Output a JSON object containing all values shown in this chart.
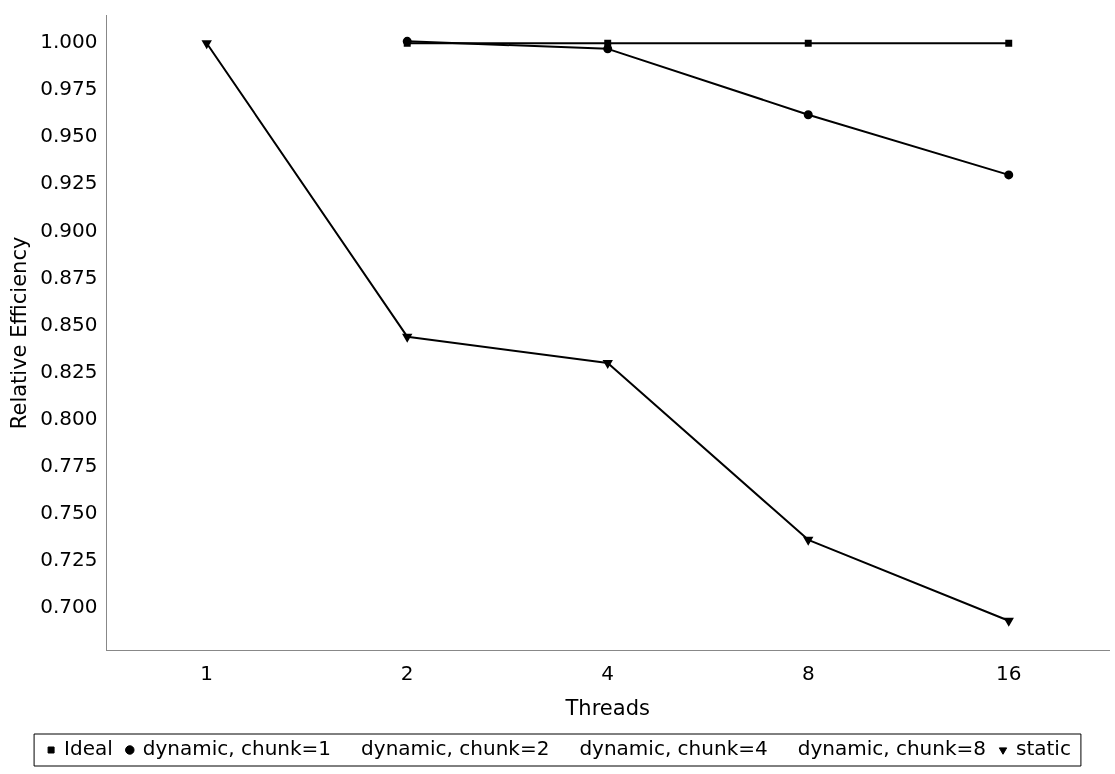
{
  "chart_data": {
    "type": "line",
    "xlabel": "Threads",
    "ylabel": "Relative Efficiency",
    "categories": [
      "1",
      "2",
      "4",
      "8",
      "16"
    ],
    "ylim": [
      0.677,
      1.015
    ],
    "yticks": [
      {
        "value": 0.7,
        "label": "0.700"
      },
      {
        "value": 0.725,
        "label": "0.725"
      },
      {
        "value": 0.75,
        "label": "0.750"
      },
      {
        "value": 0.775,
        "label": "0.775"
      },
      {
        "value": 0.8,
        "label": "0.800"
      },
      {
        "value": 0.825,
        "label": "0.825"
      },
      {
        "value": 0.85,
        "label": "0.850"
      },
      {
        "value": 0.875,
        "label": "0.875"
      },
      {
        "value": 0.9,
        "label": "0.900"
      },
      {
        "value": 0.925,
        "label": "0.925"
      },
      {
        "value": 0.95,
        "label": "0.950"
      },
      {
        "value": 0.975,
        "label": "0.975"
      },
      {
        "value": 1.0,
        "label": "1.000"
      }
    ],
    "grid": false,
    "legend": "bottom",
    "series": [
      {
        "name": "Ideal",
        "color": "#000000",
        "marker": "square",
        "values": [
          null,
          1.0,
          1.0,
          1.0,
          1.0
        ]
      },
      {
        "name": "dynamic, chunk=1",
        "color": "#000000",
        "marker": "circle",
        "values": [
          null,
          1.001,
          0.997,
          0.962,
          0.93
        ]
      },
      {
        "name": "dynamic, chunk=2",
        "color": "#000000",
        "marker": "none",
        "values": [
          null,
          null,
          null,
          null,
          null
        ]
      },
      {
        "name": "dynamic, chunk=4",
        "color": "#000000",
        "marker": "none",
        "values": [
          null,
          null,
          null,
          null,
          null
        ]
      },
      {
        "name": "dynamic, chunk=8",
        "color": "#000000",
        "marker": "none",
        "values": [
          null,
          null,
          null,
          null,
          null
        ]
      },
      {
        "name": "static",
        "color": "#000000",
        "marker": "triangle",
        "values": [
          1.0,
          0.844,
          0.83,
          0.736,
          0.693
        ]
      }
    ]
  }
}
